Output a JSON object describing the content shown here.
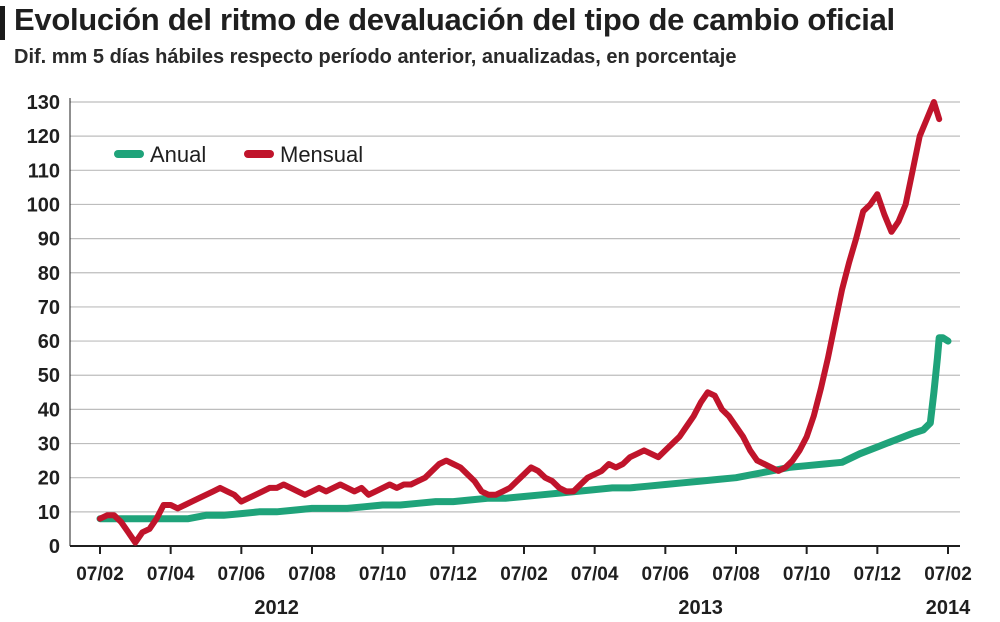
{
  "title": "Evolución del ritmo de devaluación del tipo de cambio oficial",
  "subtitle": "Dif. mm 5 días hábiles respecto período anterior, anualizadas, en porcentaje",
  "colors": {
    "anual": "#1fa37a",
    "mensual": "#c0142b",
    "grid": "#bdbdbd",
    "axis": "#1f1f1f"
  },
  "chart_data": {
    "type": "line",
    "title": "Evolución del ritmo de devaluación del tipo de cambio oficial",
    "subtitle": "Dif. mm 5 días hábiles respecto período anterior, anualizadas, en porcentaje",
    "xlabel": "",
    "ylabel": "",
    "ylim": [
      0,
      130
    ],
    "yticks": [
      0,
      10,
      20,
      30,
      40,
      50,
      60,
      70,
      80,
      90,
      100,
      110,
      120,
      130
    ],
    "xlim": [
      0,
      25
    ],
    "xticks": [
      {
        "pos": 1,
        "label": "07/02"
      },
      {
        "pos": 3,
        "label": "07/04"
      },
      {
        "pos": 5,
        "label": "07/06"
      },
      {
        "pos": 7,
        "label": "07/08"
      },
      {
        "pos": 9,
        "label": "07/10"
      },
      {
        "pos": 11,
        "label": "07/12"
      },
      {
        "pos": 13,
        "label": "07/02"
      },
      {
        "pos": 15,
        "label": "07/04"
      },
      {
        "pos": 17,
        "label": "07/06"
      },
      {
        "pos": 19,
        "label": "07/08"
      },
      {
        "pos": 21,
        "label": "07/10"
      },
      {
        "pos": 23,
        "label": "07/12"
      },
      {
        "pos": 25,
        "label": "07/02"
      }
    ],
    "year_labels": [
      {
        "pos": 6,
        "label": "2012"
      },
      {
        "pos": 18,
        "label": "2013"
      },
      {
        "pos": 25,
        "label": "2014"
      }
    ],
    "grid": "horizontal",
    "legend": {
      "placement": "top-left",
      "entries": [
        "Anual",
        "Mensual"
      ]
    },
    "series": [
      {
        "name": "Anual",
        "color": "#1fa37a",
        "points": [
          [
            1.0,
            8
          ],
          [
            1.5,
            8
          ],
          [
            2.0,
            8
          ],
          [
            2.5,
            8
          ],
          [
            3.0,
            8
          ],
          [
            3.5,
            8
          ],
          [
            4.0,
            9
          ],
          [
            4.5,
            9
          ],
          [
            5.0,
            9.5
          ],
          [
            5.5,
            10
          ],
          [
            6.0,
            10
          ],
          [
            6.5,
            10.5
          ],
          [
            7.0,
            11
          ],
          [
            7.5,
            11
          ],
          [
            8.0,
            11
          ],
          [
            8.5,
            11.5
          ],
          [
            9.0,
            12
          ],
          [
            9.5,
            12
          ],
          [
            10.0,
            12.5
          ],
          [
            10.5,
            13
          ],
          [
            11.0,
            13
          ],
          [
            11.5,
            13.5
          ],
          [
            12.0,
            14
          ],
          [
            12.5,
            14
          ],
          [
            13.0,
            14.5
          ],
          [
            13.5,
            15
          ],
          [
            14.0,
            15.5
          ],
          [
            14.5,
            16
          ],
          [
            15.0,
            16.5
          ],
          [
            15.5,
            17
          ],
          [
            16.0,
            17
          ],
          [
            16.5,
            17.5
          ],
          [
            17.0,
            18
          ],
          [
            17.5,
            18.5
          ],
          [
            18.0,
            19
          ],
          [
            18.5,
            19.5
          ],
          [
            19.0,
            20
          ],
          [
            19.5,
            21
          ],
          [
            20.0,
            22
          ],
          [
            20.5,
            23
          ],
          [
            21.0,
            23.5
          ],
          [
            21.5,
            24
          ],
          [
            22.0,
            24.5
          ],
          [
            22.5,
            27
          ],
          [
            23.0,
            29
          ],
          [
            23.5,
            31
          ],
          [
            24.0,
            33
          ],
          [
            24.3,
            34
          ],
          [
            24.5,
            36
          ],
          [
            24.6,
            45
          ],
          [
            24.7,
            55
          ],
          [
            24.75,
            61
          ],
          [
            24.85,
            61
          ],
          [
            25.0,
            60
          ]
        ]
      },
      {
        "name": "Mensual",
        "color": "#c0142b",
        "points": [
          [
            1.0,
            8
          ],
          [
            1.2,
            9
          ],
          [
            1.4,
            9
          ],
          [
            1.6,
            7
          ],
          [
            1.8,
            4
          ],
          [
            2.0,
            1
          ],
          [
            2.2,
            4
          ],
          [
            2.4,
            5
          ],
          [
            2.6,
            8
          ],
          [
            2.8,
            12
          ],
          [
            3.0,
            12
          ],
          [
            3.2,
            11
          ],
          [
            3.4,
            12
          ],
          [
            3.6,
            13
          ],
          [
            3.8,
            14
          ],
          [
            4.0,
            15
          ],
          [
            4.2,
            16
          ],
          [
            4.4,
            17
          ],
          [
            4.6,
            16
          ],
          [
            4.8,
            15
          ],
          [
            5.0,
            13
          ],
          [
            5.2,
            14
          ],
          [
            5.4,
            15
          ],
          [
            5.6,
            16
          ],
          [
            5.8,
            17
          ],
          [
            6.0,
            17
          ],
          [
            6.2,
            18
          ],
          [
            6.4,
            17
          ],
          [
            6.6,
            16
          ],
          [
            6.8,
            15
          ],
          [
            7.0,
            16
          ],
          [
            7.2,
            17
          ],
          [
            7.4,
            16
          ],
          [
            7.6,
            17
          ],
          [
            7.8,
            18
          ],
          [
            8.0,
            17
          ],
          [
            8.2,
            16
          ],
          [
            8.4,
            17
          ],
          [
            8.6,
            15
          ],
          [
            8.8,
            16
          ],
          [
            9.0,
            17
          ],
          [
            9.2,
            18
          ],
          [
            9.4,
            17
          ],
          [
            9.6,
            18
          ],
          [
            9.8,
            18
          ],
          [
            10.0,
            19
          ],
          [
            10.2,
            20
          ],
          [
            10.4,
            22
          ],
          [
            10.6,
            24
          ],
          [
            10.8,
            25
          ],
          [
            11.0,
            24
          ],
          [
            11.2,
            23
          ],
          [
            11.4,
            21
          ],
          [
            11.6,
            19
          ],
          [
            11.8,
            16
          ],
          [
            12.0,
            15
          ],
          [
            12.2,
            15
          ],
          [
            12.4,
            16
          ],
          [
            12.6,
            17
          ],
          [
            12.8,
            19
          ],
          [
            13.0,
            21
          ],
          [
            13.2,
            23
          ],
          [
            13.4,
            22
          ],
          [
            13.6,
            20
          ],
          [
            13.8,
            19
          ],
          [
            14.0,
            17
          ],
          [
            14.2,
            16
          ],
          [
            14.4,
            16
          ],
          [
            14.6,
            18
          ],
          [
            14.8,
            20
          ],
          [
            15.0,
            21
          ],
          [
            15.2,
            22
          ],
          [
            15.4,
            24
          ],
          [
            15.6,
            23
          ],
          [
            15.8,
            24
          ],
          [
            16.0,
            26
          ],
          [
            16.2,
            27
          ],
          [
            16.4,
            28
          ],
          [
            16.6,
            27
          ],
          [
            16.8,
            26
          ],
          [
            17.0,
            28
          ],
          [
            17.2,
            30
          ],
          [
            17.4,
            32
          ],
          [
            17.6,
            35
          ],
          [
            17.8,
            38
          ],
          [
            18.0,
            42
          ],
          [
            18.2,
            45
          ],
          [
            18.4,
            44
          ],
          [
            18.6,
            40
          ],
          [
            18.8,
            38
          ],
          [
            19.0,
            35
          ],
          [
            19.2,
            32
          ],
          [
            19.4,
            28
          ],
          [
            19.6,
            25
          ],
          [
            19.8,
            24
          ],
          [
            20.0,
            23
          ],
          [
            20.2,
            22
          ],
          [
            20.4,
            23
          ],
          [
            20.6,
            25
          ],
          [
            20.8,
            28
          ],
          [
            21.0,
            32
          ],
          [
            21.2,
            38
          ],
          [
            21.4,
            46
          ],
          [
            21.6,
            55
          ],
          [
            21.8,
            65
          ],
          [
            22.0,
            75
          ],
          [
            22.2,
            83
          ],
          [
            22.4,
            90
          ],
          [
            22.6,
            98
          ],
          [
            22.8,
            100
          ],
          [
            23.0,
            103
          ],
          [
            23.2,
            97
          ],
          [
            23.4,
            92
          ],
          [
            23.6,
            95
          ],
          [
            23.8,
            100
          ],
          [
            24.0,
            110
          ],
          [
            24.2,
            120
          ],
          [
            24.4,
            125
          ],
          [
            24.6,
            130
          ],
          [
            24.75,
            125
          ]
        ]
      }
    ]
  }
}
